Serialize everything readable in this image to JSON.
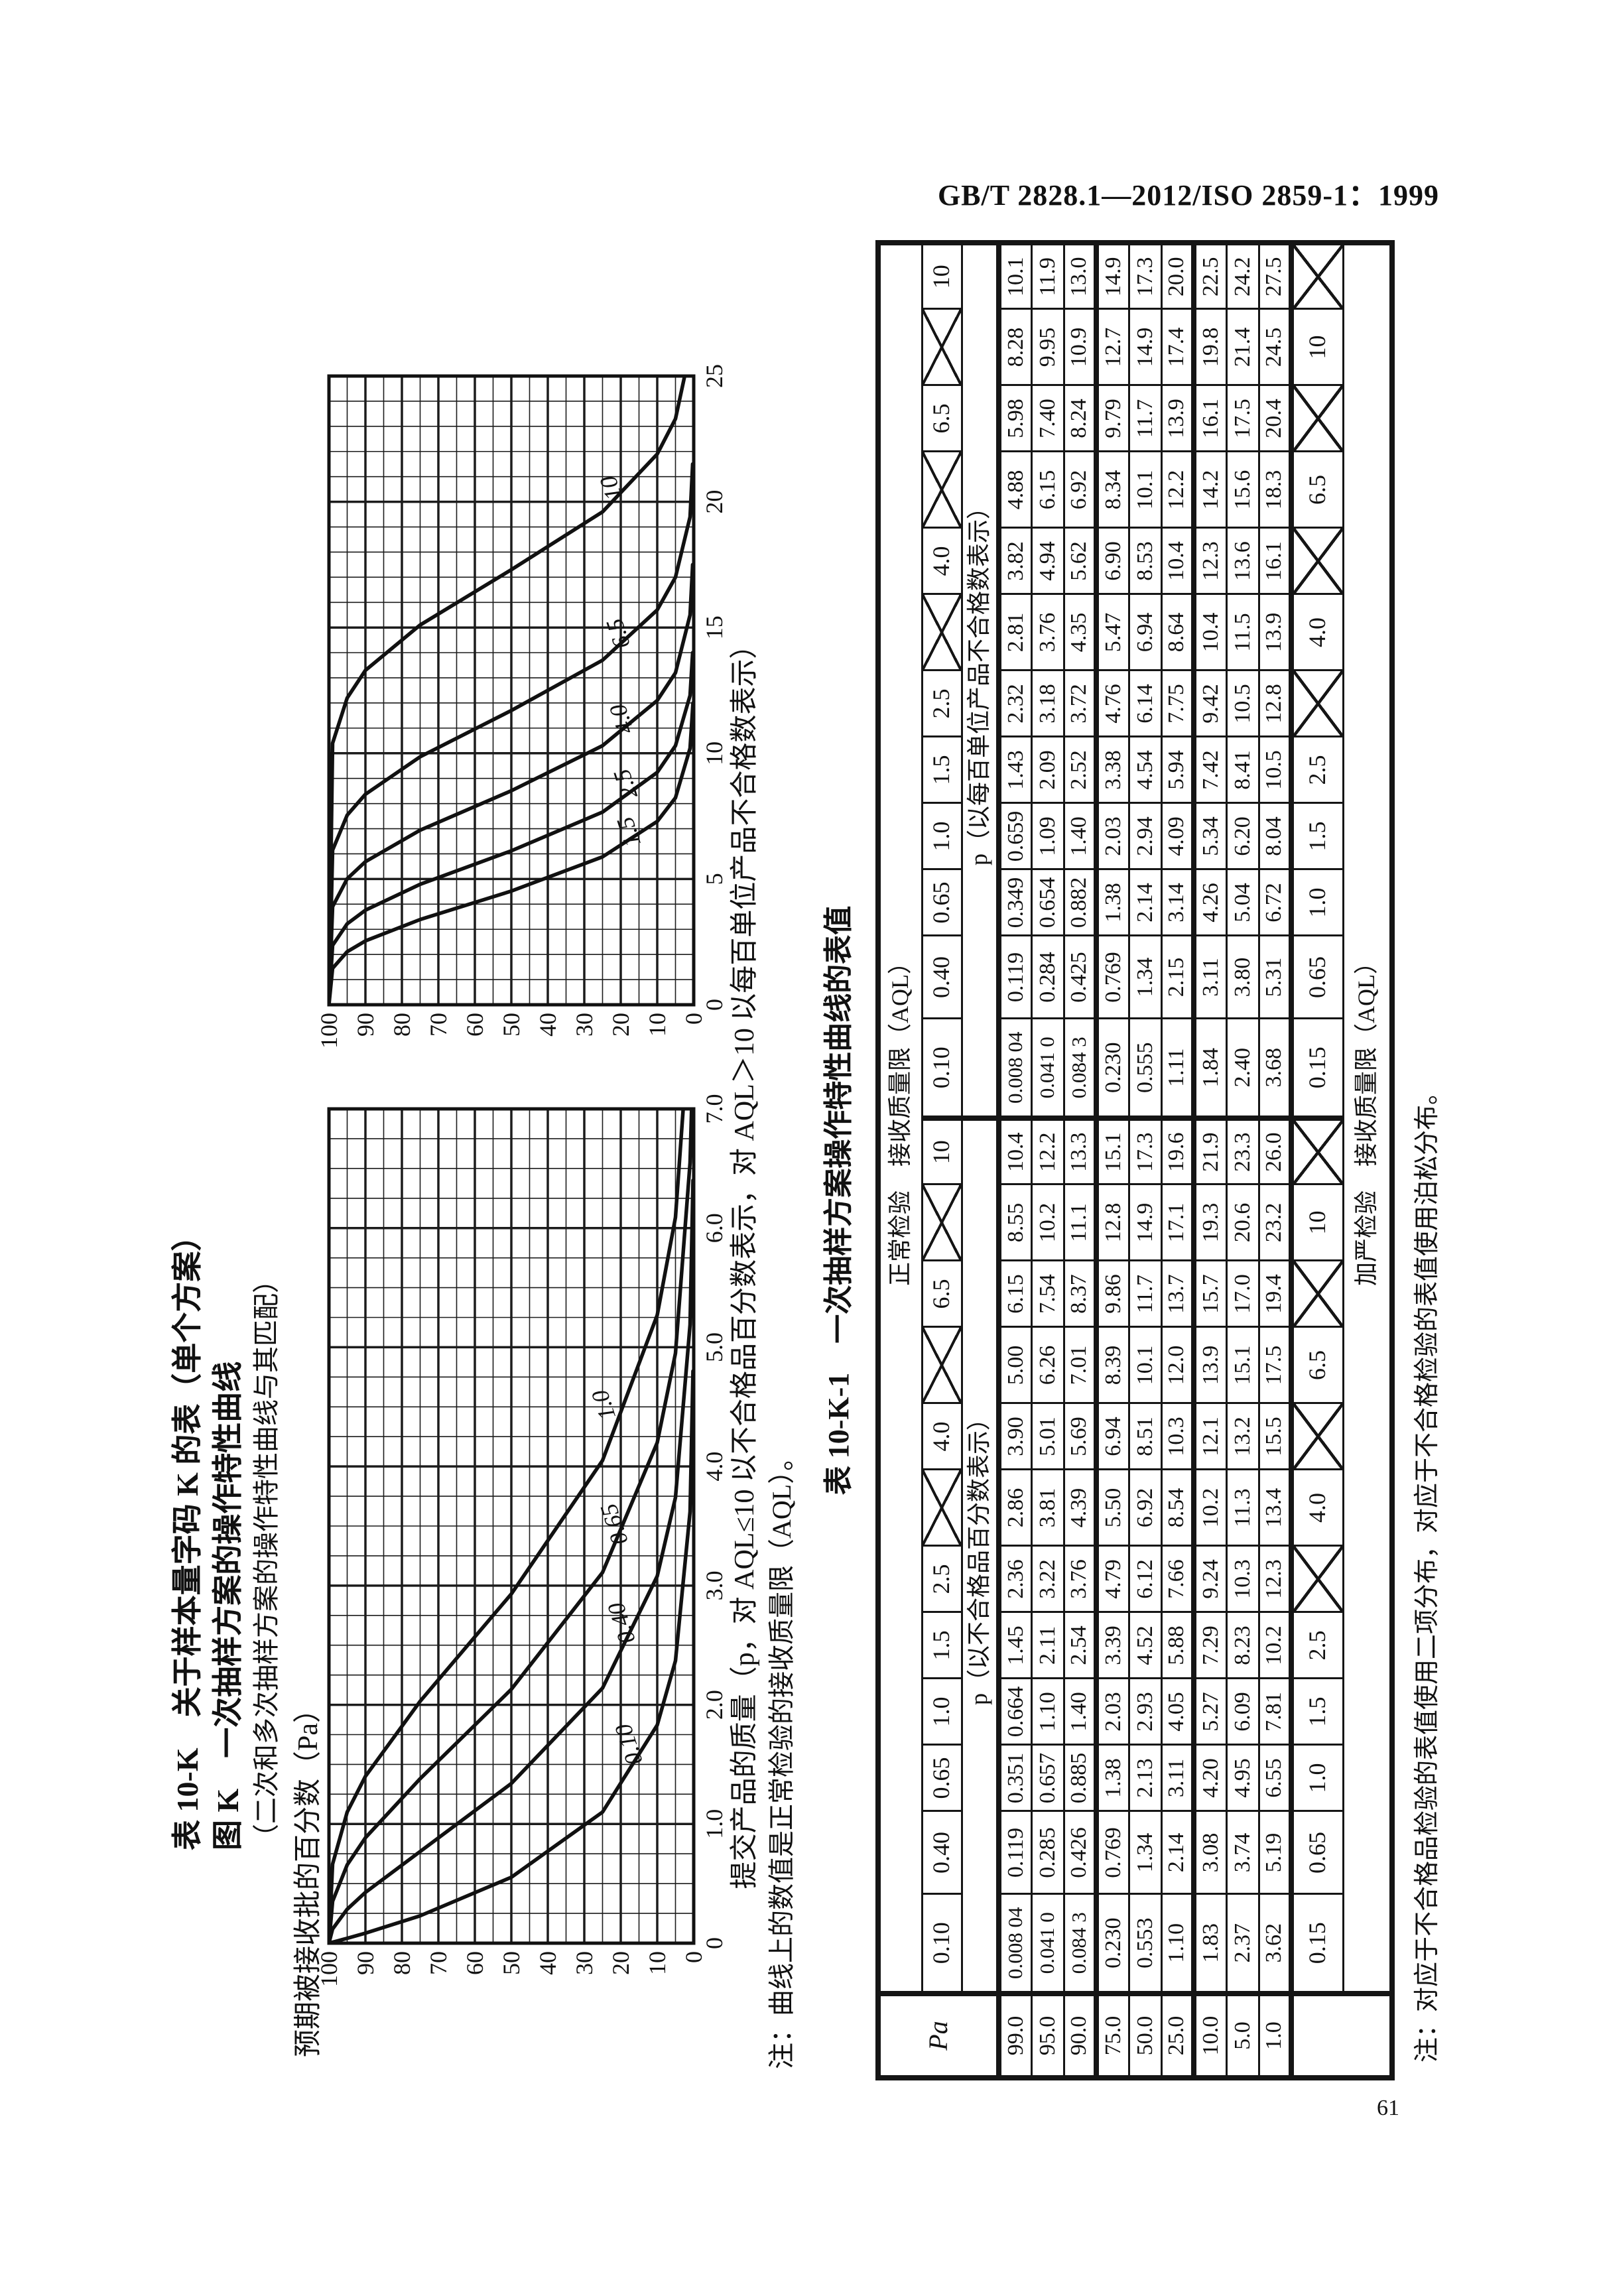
{
  "page": {
    "standard_no": "GB/T 2828.1—2012/ISO 2859-1：1999",
    "page_number": "61"
  },
  "figure": {
    "title1": "表 10-K　关于样本量字码 K 的表（单个方案）",
    "title2": "图 K　一次抽样方案的操作特性曲线",
    "title3": "（二次和多次抽样方案的操作特性曲线与其匹配）",
    "y_axis_label": "预期被接收批的百分数（Pa）",
    "x_axis_label": "提交产品的质量（p，对 AQL≤10 以不合格品百分数表示，对 AQL＞10 以每百单位产品不合格数表示）",
    "note": "注：曲线上的数值是正常检验的接收质量限（AQL）。"
  },
  "chart_data": [
    {
      "type": "line",
      "name": "oc-chart-low-aql",
      "title": "",
      "xlabel": "提交产品的质量 p",
      "ylabel": "预期被接收批的百分数 Pa",
      "xlim": [
        0,
        7
      ],
      "ylim": [
        0,
        100
      ],
      "x_minor": 0.25,
      "x_major": 1,
      "y_minor": 5,
      "y_major": 10,
      "grid": "on",
      "legend_position": "on-curve",
      "xticks": [
        "0",
        "1.0",
        "2.0",
        "3.0",
        "4.0",
        "5.0",
        "6.0",
        "7.0"
      ],
      "xtick_values": [
        0,
        1,
        2,
        3,
        4,
        5,
        6,
        7
      ],
      "ytick_values": [
        100,
        90,
        80,
        70,
        60,
        50,
        40,
        30,
        20,
        10,
        0
      ],
      "series": [
        {
          "name": "0.10",
          "label_xy": [
            1.6,
            18
          ],
          "points": [
            [
              0,
              100
            ],
            [
              0.008,
              99
            ],
            [
              0.041,
              95
            ],
            [
              0.084,
              90
            ],
            [
              0.23,
              75
            ],
            [
              0.553,
              50
            ],
            [
              1.1,
              25
            ],
            [
              1.83,
              10
            ],
            [
              2.37,
              5
            ],
            [
              3.62,
              1
            ],
            [
              4.8,
              0.2
            ]
          ]
        },
        {
          "name": "0.40",
          "label_xy": [
            2.62,
            20
          ],
          "points": [
            [
              0,
              100
            ],
            [
              0.119,
              99
            ],
            [
              0.285,
              95
            ],
            [
              0.426,
              90
            ],
            [
              0.769,
              75
            ],
            [
              1.34,
              50
            ],
            [
              2.14,
              25
            ],
            [
              3.08,
              10
            ],
            [
              3.74,
              5
            ],
            [
              5.19,
              1
            ],
            [
              6.4,
              0.2
            ]
          ]
        },
        {
          "name": "0.65",
          "label_xy": [
            3.45,
            22
          ],
          "points": [
            [
              0,
              100
            ],
            [
              0.351,
              99
            ],
            [
              0.657,
              95
            ],
            [
              0.885,
              90
            ],
            [
              1.38,
              75
            ],
            [
              2.13,
              50
            ],
            [
              3.11,
              25
            ],
            [
              4.2,
              10
            ],
            [
              4.95,
              5
            ],
            [
              6.55,
              1
            ],
            [
              7.2,
              0.4
            ]
          ]
        },
        {
          "name": "1.0",
          "label_xy": [
            4.5,
            25
          ],
          "points": [
            [
              0,
              100
            ],
            [
              0.664,
              99
            ],
            [
              1.1,
              95
            ],
            [
              1.4,
              90
            ],
            [
              2.03,
              75
            ],
            [
              2.93,
              50
            ],
            [
              4.05,
              25
            ],
            [
              5.27,
              10
            ],
            [
              6.09,
              5
            ],
            [
              7.81,
              1
            ]
          ]
        }
      ]
    },
    {
      "type": "line",
      "name": "oc-chart-high-aql",
      "title": "",
      "xlabel": "提交产品的质量 p",
      "ylabel": "预期被接收批的百分数 Pa",
      "xlim": [
        0,
        25
      ],
      "ylim": [
        0,
        100
      ],
      "x_minor": 1,
      "x_major": 5,
      "y_minor": 5,
      "y_major": 10,
      "grid": "on",
      "legend_position": "on-curve",
      "xticks": [
        "0",
        "5",
        "10",
        "15",
        "20",
        "25"
      ],
      "xtick_values": [
        0,
        5,
        10,
        15,
        20,
        25
      ],
      "ytick_values": [
        100,
        90,
        80,
        70,
        60,
        50,
        40,
        30,
        20,
        10,
        0
      ],
      "series": [
        {
          "name": "1.5",
          "label_xy": [
            6.8,
            18
          ],
          "points": [
            [
              0,
              100
            ],
            [
              1.45,
              99
            ],
            [
              2.11,
              95
            ],
            [
              2.54,
              90
            ],
            [
              3.39,
              75
            ],
            [
              4.52,
              50
            ],
            [
              5.88,
              25
            ],
            [
              7.29,
              10
            ],
            [
              8.23,
              5
            ],
            [
              10.2,
              1
            ],
            [
              12,
              0.2
            ]
          ]
        },
        {
          "name": "2.5",
          "label_xy": [
            8.7,
            19
          ],
          "points": [
            [
              0,
              100
            ],
            [
              2.36,
              99
            ],
            [
              3.22,
              95
            ],
            [
              3.76,
              90
            ],
            [
              4.79,
              75
            ],
            [
              6.12,
              50
            ],
            [
              7.66,
              25
            ],
            [
              9.24,
              10
            ],
            [
              10.3,
              5
            ],
            [
              12.3,
              1
            ],
            [
              14,
              0.3
            ]
          ]
        },
        {
          "name": "4.0",
          "label_xy": [
            11.3,
            20
          ],
          "points": [
            [
              0,
              100
            ],
            [
              3.9,
              99
            ],
            [
              5.01,
              95
            ],
            [
              5.69,
              90
            ],
            [
              6.94,
              75
            ],
            [
              8.51,
              50
            ],
            [
              10.3,
              25
            ],
            [
              12.1,
              10
            ],
            [
              13.2,
              5
            ],
            [
              15.5,
              1
            ],
            [
              17.5,
              0.3
            ]
          ]
        },
        {
          "name": "6.5",
          "label_xy": [
            14.7,
            21
          ],
          "points": [
            [
              0,
              100
            ],
            [
              6.15,
              99
            ],
            [
              7.54,
              95
            ],
            [
              8.37,
              90
            ],
            [
              9.86,
              75
            ],
            [
              11.7,
              50
            ],
            [
              13.7,
              25
            ],
            [
              15.7,
              10
            ],
            [
              17.0,
              5
            ],
            [
              19.4,
              1
            ],
            [
              21.5,
              0.3
            ]
          ]
        },
        {
          "name": "10",
          "label_xy": [
            20.6,
            23
          ],
          "points": [
            [
              0,
              100
            ],
            [
              10.4,
              99
            ],
            [
              12.2,
              95
            ],
            [
              13.3,
              90
            ],
            [
              15.1,
              75
            ],
            [
              17.3,
              50
            ],
            [
              19.6,
              25
            ],
            [
              21.9,
              10
            ],
            [
              23.3,
              5
            ],
            [
              26.0,
              1
            ]
          ]
        }
      ]
    }
  ],
  "table": {
    "title": "表 10-K-1　一次抽样方案操作特性曲线的表值",
    "corner_label": "Pa",
    "header_normal": "正常检验　接收质量限（AQL）",
    "section_binomial": "p（以不合格品百分数表示）",
    "section_poisson": "p（以每百单位产品不合格数表示）",
    "aql_normal": [
      "0.10",
      "0.40",
      "0.65",
      "1.0",
      "1.5",
      "2.5",
      "X",
      "4.0",
      "X",
      "6.5",
      "X",
      "10"
    ],
    "aql_tightened": [
      "0.15",
      "0.65",
      "1.0",
      "1.5",
      "2.5",
      "X",
      "4.0",
      "X",
      "6.5",
      "X",
      "10",
      "X"
    ],
    "header_tightened": "加严检验　接收质量限（AQL）",
    "rows": [
      {
        "pa": "99.0",
        "binomial": [
          "0.008 04",
          "0.119",
          "0.351",
          "0.664",
          "1.45",
          "2.36",
          "2.86",
          "3.90",
          "5.00",
          "6.15",
          "8.55",
          "10.4"
        ],
        "poisson": [
          "0.008 04",
          "0.119",
          "0.349",
          "0.659",
          "1.43",
          "2.32",
          "2.81",
          "3.82",
          "4.88",
          "5.98",
          "8.28",
          "10.1"
        ]
      },
      {
        "pa": "95.0",
        "binomial": [
          "0.041 0",
          "0.285",
          "0.657",
          "1.10",
          "2.11",
          "3.22",
          "3.81",
          "5.01",
          "6.26",
          "7.54",
          "10.2",
          "12.2"
        ],
        "poisson": [
          "0.041 0",
          "0.284",
          "0.654",
          "1.09",
          "2.09",
          "3.18",
          "3.76",
          "4.94",
          "6.15",
          "7.40",
          "9.95",
          "11.9"
        ]
      },
      {
        "pa": "90.0",
        "binomial": [
          "0.084 3",
          "0.426",
          "0.885",
          "1.40",
          "2.54",
          "3.76",
          "4.39",
          "5.69",
          "7.01",
          "8.37",
          "11.1",
          "13.3"
        ],
        "poisson": [
          "0.084 3",
          "0.425",
          "0.882",
          "1.40",
          "2.52",
          "3.72",
          "4.35",
          "5.62",
          "6.92",
          "8.24",
          "10.9",
          "13.0"
        ]
      },
      {
        "pa": "75.0",
        "binomial": [
          "0.230",
          "0.769",
          "1.38",
          "2.03",
          "3.39",
          "4.79",
          "5.50",
          "6.94",
          "8.39",
          "9.86",
          "12.8",
          "15.1"
        ],
        "poisson": [
          "0.230",
          "0.769",
          "1.38",
          "2.03",
          "3.38",
          "4.76",
          "5.47",
          "6.90",
          "8.34",
          "9.79",
          "12.7",
          "14.9"
        ]
      },
      {
        "pa": "50.0",
        "binomial": [
          "0.553",
          "1.34",
          "2.13",
          "2.93",
          "4.52",
          "6.12",
          "6.92",
          "8.51",
          "10.1",
          "11.7",
          "14.9",
          "17.3"
        ],
        "poisson": [
          "0.555",
          "1.34",
          "2.14",
          "2.94",
          "4.54",
          "6.14",
          "6.94",
          "8.53",
          "10.1",
          "11.7",
          "14.9",
          "17.3"
        ]
      },
      {
        "pa": "25.0",
        "binomial": [
          "1.10",
          "2.14",
          "3.11",
          "4.05",
          "5.88",
          "7.66",
          "8.54",
          "10.3",
          "12.0",
          "13.7",
          "17.1",
          "19.6"
        ],
        "poisson": [
          "1.11",
          "2.15",
          "3.14",
          "4.09",
          "5.94",
          "7.75",
          "8.64",
          "10.4",
          "12.2",
          "13.9",
          "17.4",
          "20.0"
        ]
      },
      {
        "pa": "10.0",
        "binomial": [
          "1.83",
          "3.08",
          "4.20",
          "5.27",
          "7.29",
          "9.24",
          "10.2",
          "12.1",
          "13.9",
          "15.7",
          "19.3",
          "21.9"
        ],
        "poisson": [
          "1.84",
          "3.11",
          "4.26",
          "5.34",
          "7.42",
          "9.42",
          "10.4",
          "12.3",
          "14.2",
          "16.1",
          "19.8",
          "22.5"
        ]
      },
      {
        "pa": "5.0",
        "binomial": [
          "2.37",
          "3.74",
          "4.95",
          "6.09",
          "8.23",
          "10.3",
          "11.3",
          "13.2",
          "15.1",
          "17.0",
          "20.6",
          "23.3"
        ],
        "poisson": [
          "2.40",
          "3.80",
          "5.04",
          "6.20",
          "8.41",
          "10.5",
          "11.5",
          "13.6",
          "15.6",
          "17.5",
          "21.4",
          "24.2"
        ]
      },
      {
        "pa": "1.0",
        "binomial": [
          "3.62",
          "5.19",
          "6.55",
          "7.81",
          "10.2",
          "12.3",
          "13.4",
          "15.5",
          "17.5",
          "19.4",
          "23.2",
          "26.0"
        ],
        "poisson": [
          "3.68",
          "5.31",
          "6.72",
          "8.04",
          "10.5",
          "12.8",
          "13.9",
          "16.1",
          "18.3",
          "20.4",
          "24.5",
          "27.5"
        ]
      }
    ],
    "note": "注：对应于不合格品检验的表值使用二项分布，对应于不合格检验的表值使用泊松分布。"
  }
}
